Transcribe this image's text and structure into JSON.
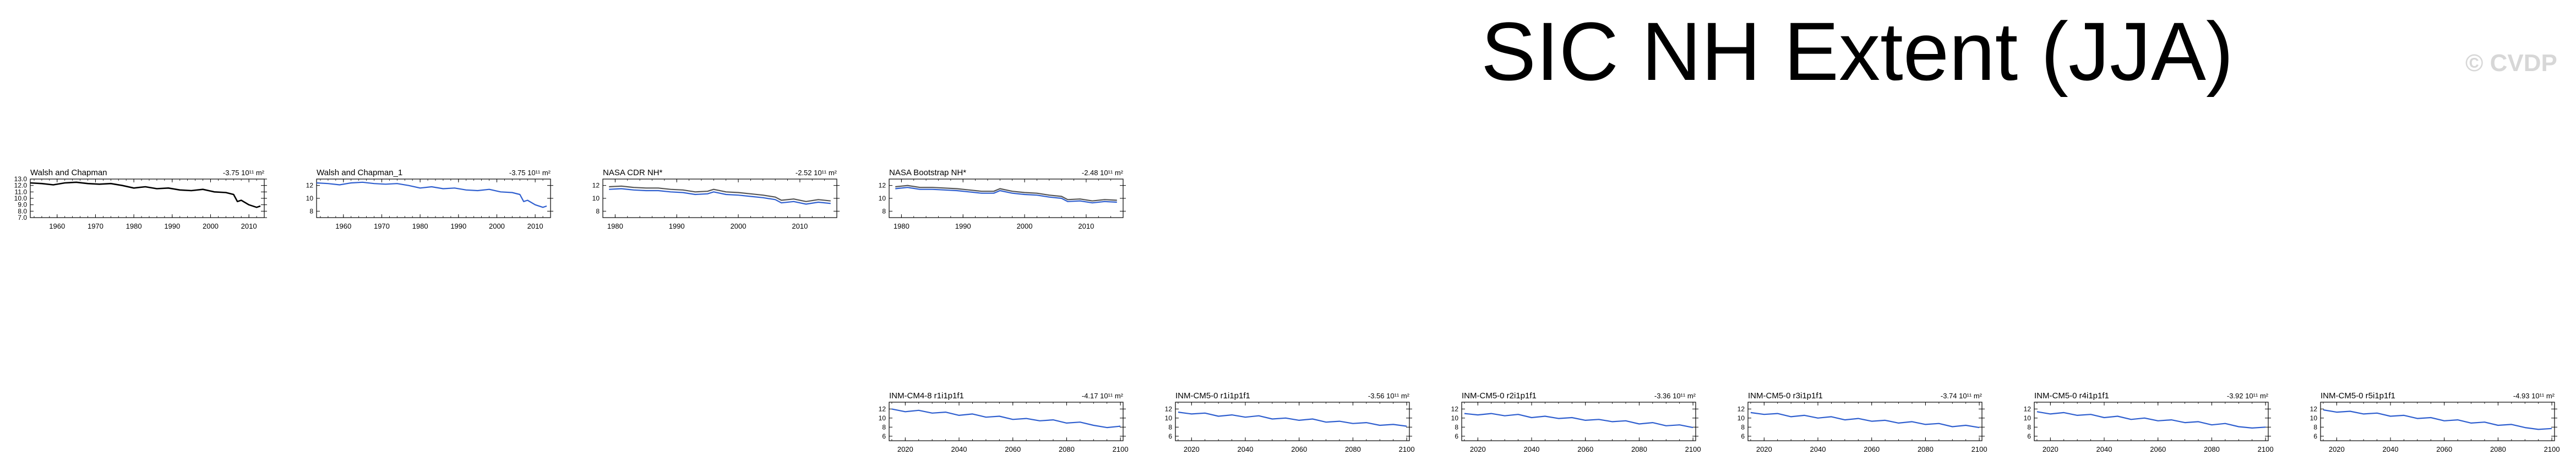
{
  "title": "SIC NH Extent (JJA)",
  "watermark": "© CVDP",
  "colors": {
    "observed": "#000000",
    "model": "#2f5fcf",
    "obs_secondary": "#555555"
  },
  "chart_data": [
    {
      "type": "line",
      "panel_name": "Walsh and Chapman",
      "trend": "-3.75 10¹¹ m²",
      "xlim": [
        1953,
        2014
      ],
      "ylim": [
        7,
        13
      ],
      "xticks": [
        1960,
        1970,
        1980,
        1990,
        2000,
        2010
      ],
      "yticks": [
        7.0,
        8.0,
        9.0,
        10.0,
        11.0,
        12.0,
        13.0
      ],
      "yticks_labels": [
        "7.0",
        "8.0",
        "9.0",
        "10.0",
        "11.0",
        "12.0",
        "13.0"
      ],
      "series": [
        {
          "color": "#000000",
          "x": [
            1953,
            1956,
            1959,
            1962,
            1965,
            1968,
            1971,
            1974,
            1977,
            1980,
            1983,
            1986,
            1989,
            1992,
            1995,
            1998,
            2001,
            2004,
            2006,
            2007,
            2008,
            2010,
            2012,
            2013
          ],
          "values": [
            12.4,
            12.3,
            12.1,
            12.4,
            12.5,
            12.3,
            12.2,
            12.3,
            12.0,
            11.6,
            11.8,
            11.5,
            11.6,
            11.3,
            11.2,
            11.4,
            11.0,
            10.9,
            10.6,
            9.5,
            9.7,
            9.0,
            8.6,
            8.8
          ]
        }
      ]
    },
    {
      "type": "line",
      "panel_name": "Walsh and Chapman_1",
      "trend": "-3.75 10¹¹ m²",
      "xlim": [
        1953,
        2014
      ],
      "ylim": [
        7,
        13
      ],
      "xticks": [
        1960,
        1970,
        1980,
        1990,
        2000,
        2010
      ],
      "yticks": [
        8,
        10,
        12
      ],
      "yticks_labels": [
        "8",
        "10",
        "12"
      ],
      "series": [
        {
          "color": "#2f5fcf",
          "x": [
            1953,
            1956,
            1959,
            1962,
            1965,
            1968,
            1971,
            1974,
            1977,
            1980,
            1983,
            1986,
            1989,
            1992,
            1995,
            1998,
            2001,
            2004,
            2006,
            2007,
            2008,
            2010,
            2012,
            2013
          ],
          "values": [
            12.4,
            12.3,
            12.1,
            12.4,
            12.5,
            12.3,
            12.2,
            12.3,
            12.0,
            11.6,
            11.8,
            11.5,
            11.6,
            11.3,
            11.2,
            11.4,
            11.0,
            10.9,
            10.6,
            9.5,
            9.7,
            9.0,
            8.6,
            8.8
          ]
        }
      ]
    },
    {
      "type": "line",
      "panel_name": "NASA CDR NH*",
      "trend": "-2.52 10¹¹ m²",
      "xlim": [
        1978,
        2016
      ],
      "ylim": [
        7,
        13
      ],
      "xticks": [
        1980,
        1990,
        2000,
        2010
      ],
      "yticks": [
        8,
        10,
        12
      ],
      "yticks_labels": [
        "8",
        "10",
        "12"
      ],
      "series": [
        {
          "color": "#555555",
          "x": [
            1979,
            1981,
            1983,
            1985,
            1987,
            1989,
            1991,
            1993,
            1995,
            1996,
            1998,
            2000,
            2002,
            2004,
            2006,
            2007,
            2009,
            2011,
            2013,
            2015
          ],
          "values": [
            11.8,
            11.9,
            11.7,
            11.6,
            11.6,
            11.4,
            11.3,
            11.0,
            11.1,
            11.4,
            11.0,
            10.9,
            10.7,
            10.5,
            10.2,
            9.7,
            9.9,
            9.5,
            9.8,
            9.6
          ]
        },
        {
          "color": "#2f5fcf",
          "x": [
            1979,
            1981,
            1983,
            1985,
            1987,
            1989,
            1991,
            1993,
            1995,
            1996,
            1998,
            2000,
            2002,
            2004,
            2006,
            2007,
            2009,
            2011,
            2013,
            2015
          ],
          "values": [
            11.4,
            11.5,
            11.3,
            11.2,
            11.2,
            11.0,
            10.9,
            10.6,
            10.7,
            11.0,
            10.6,
            10.5,
            10.3,
            10.1,
            9.8,
            9.3,
            9.5,
            9.1,
            9.4,
            9.2
          ]
        }
      ]
    },
    {
      "type": "line",
      "panel_name": "NASA Bootstrap NH*",
      "trend": "-2.48 10¹¹ m²",
      "xlim": [
        1978,
        2016
      ],
      "ylim": [
        7,
        13
      ],
      "xticks": [
        1980,
        1990,
        2000,
        2010
      ],
      "yticks": [
        8,
        10,
        12
      ],
      "yticks_labels": [
        "8",
        "10",
        "12"
      ],
      "series": [
        {
          "color": "#555555",
          "x": [
            1979,
            1981,
            1983,
            1985,
            1987,
            1989,
            1991,
            1993,
            1995,
            1996,
            1998,
            2000,
            2002,
            2004,
            2006,
            2007,
            2009,
            2011,
            2013,
            2015
          ],
          "values": [
            11.8,
            12.0,
            11.7,
            11.7,
            11.6,
            11.5,
            11.3,
            11.1,
            11.1,
            11.5,
            11.1,
            10.9,
            10.8,
            10.5,
            10.3,
            9.8,
            9.9,
            9.6,
            9.8,
            9.7
          ]
        },
        {
          "color": "#2f5fcf",
          "x": [
            1979,
            1981,
            1983,
            1985,
            1987,
            1989,
            1991,
            1993,
            1995,
            1996,
            1998,
            2000,
            2002,
            2004,
            2006,
            2007,
            2009,
            2011,
            2013,
            2015
          ],
          "values": [
            11.5,
            11.7,
            11.4,
            11.4,
            11.3,
            11.2,
            11.0,
            10.8,
            10.8,
            11.2,
            10.8,
            10.6,
            10.5,
            10.2,
            10.0,
            9.5,
            9.6,
            9.3,
            9.5,
            9.4
          ]
        }
      ]
    },
    {
      "type": "line",
      "panel_name": "INM-CM4-8 r1i1p1f1",
      "trend": "-4.17 10¹¹ m²",
      "xlim": [
        2014,
        2101
      ],
      "ylim": [
        5,
        13.5
      ],
      "xticks": [
        2020,
        2040,
        2060,
        2080,
        2100
      ],
      "yticks": [
        6,
        8,
        10,
        12
      ],
      "yticks_labels": [
        "6",
        "8",
        "10",
        "12"
      ],
      "series": [
        {
          "color": "#2f5fcf",
          "x": [
            2015,
            2020,
            2025,
            2030,
            2035,
            2040,
            2045,
            2050,
            2055,
            2060,
            2065,
            2070,
            2075,
            2080,
            2085,
            2090,
            2095,
            2100
          ],
          "values": [
            12.0,
            11.4,
            11.7,
            11.1,
            11.3,
            10.6,
            10.9,
            10.2,
            10.4,
            9.7,
            9.9,
            9.4,
            9.6,
            8.9,
            9.1,
            8.4,
            7.9,
            8.2
          ]
        }
      ]
    },
    {
      "type": "line",
      "panel_name": "INM-CM5-0 r1i1p1f1",
      "trend": "-3.56 10¹¹ m²",
      "xlim": [
        2014,
        2101
      ],
      "ylim": [
        5,
        13.5
      ],
      "xticks": [
        2020,
        2040,
        2060,
        2080,
        2100
      ],
      "yticks": [
        6,
        8,
        10,
        12
      ],
      "yticks_labels": [
        "6",
        "8",
        "10",
        "12"
      ],
      "series": [
        {
          "color": "#2f5fcf",
          "x": [
            2015,
            2020,
            2025,
            2030,
            2035,
            2040,
            2045,
            2050,
            2055,
            2060,
            2065,
            2070,
            2075,
            2080,
            2085,
            2090,
            2095,
            2100
          ],
          "values": [
            11.3,
            10.9,
            11.1,
            10.4,
            10.7,
            10.2,
            10.5,
            9.8,
            10.0,
            9.5,
            9.8,
            9.1,
            9.3,
            8.8,
            9.0,
            8.4,
            8.6,
            8.2
          ]
        }
      ]
    },
    {
      "type": "line",
      "panel_name": "INM-CM5-0 r2i1p1f1",
      "trend": "-3.36 10¹¹ m²",
      "xlim": [
        2014,
        2101
      ],
      "ylim": [
        5,
        13.5
      ],
      "xticks": [
        2020,
        2040,
        2060,
        2080,
        2100
      ],
      "yticks": [
        6,
        8,
        10,
        12
      ],
      "yticks_labels": [
        "6",
        "8",
        "10",
        "12"
      ],
      "series": [
        {
          "color": "#2f5fcf",
          "x": [
            2015,
            2020,
            2025,
            2030,
            2035,
            2040,
            2045,
            2050,
            2055,
            2060,
            2065,
            2070,
            2075,
            2080,
            2085,
            2090,
            2095,
            2100
          ],
          "values": [
            11.0,
            10.7,
            11.0,
            10.5,
            10.8,
            10.1,
            10.4,
            9.9,
            10.1,
            9.5,
            9.7,
            9.2,
            9.4,
            8.7,
            9.0,
            8.3,
            8.5,
            7.9
          ]
        }
      ]
    },
    {
      "type": "line",
      "panel_name": "INM-CM5-0 r3i1p1f1",
      "trend": "-3.74 10¹¹ m²",
      "xlim": [
        2014,
        2101
      ],
      "ylim": [
        5,
        13.5
      ],
      "xticks": [
        2020,
        2040,
        2060,
        2080,
        2100
      ],
      "yticks": [
        6,
        8,
        10,
        12
      ],
      "yticks_labels": [
        "6",
        "8",
        "10",
        "12"
      ],
      "series": [
        {
          "color": "#2f5fcf",
          "x": [
            2015,
            2020,
            2025,
            2030,
            2035,
            2040,
            2045,
            2050,
            2055,
            2060,
            2065,
            2070,
            2075,
            2080,
            2085,
            2090,
            2095,
            2100
          ],
          "values": [
            11.2,
            10.8,
            11.0,
            10.3,
            10.6,
            10.0,
            10.3,
            9.6,
            9.9,
            9.3,
            9.5,
            8.9,
            9.2,
            8.6,
            8.8,
            8.1,
            8.4,
            7.9
          ]
        }
      ]
    },
    {
      "type": "line",
      "panel_name": "INM-CM5-0 r4i1p1f1",
      "trend": "-3.92 10¹¹ m²",
      "xlim": [
        2014,
        2101
      ],
      "ylim": [
        5,
        13.5
      ],
      "xticks": [
        2020,
        2040,
        2060,
        2080,
        2100
      ],
      "yticks": [
        6,
        8,
        10,
        12
      ],
      "yticks_labels": [
        "6",
        "8",
        "10",
        "12"
      ],
      "series": [
        {
          "color": "#2f5fcf",
          "x": [
            2015,
            2020,
            2025,
            2030,
            2035,
            2040,
            2045,
            2050,
            2055,
            2060,
            2065,
            2070,
            2075,
            2080,
            2085,
            2090,
            2095,
            2100
          ],
          "values": [
            11.4,
            10.9,
            11.2,
            10.6,
            10.8,
            10.1,
            10.4,
            9.7,
            10.0,
            9.4,
            9.6,
            9.0,
            9.2,
            8.5,
            8.8,
            8.1,
            7.8,
            8.0
          ]
        }
      ]
    },
    {
      "type": "line",
      "panel_name": "INM-CM5-0 r5i1p1f1",
      "trend": "-4.93 10¹¹ m²",
      "xlim": [
        2014,
        2101
      ],
      "ylim": [
        5,
        13.5
      ],
      "xticks": [
        2020,
        2040,
        2060,
        2080,
        2100
      ],
      "yticks": [
        6,
        8,
        10,
        12
      ],
      "yticks_labels": [
        "6",
        "8",
        "10",
        "12"
      ],
      "series": [
        {
          "color": "#2f5fcf",
          "x": [
            2015,
            2020,
            2025,
            2030,
            2035,
            2040,
            2045,
            2050,
            2055,
            2060,
            2065,
            2070,
            2075,
            2080,
            2085,
            2090,
            2095,
            2100
          ],
          "values": [
            11.8,
            11.3,
            11.5,
            10.9,
            11.1,
            10.4,
            10.6,
            9.9,
            10.1,
            9.4,
            9.6,
            8.9,
            9.1,
            8.4,
            8.6,
            7.9,
            7.5,
            7.7
          ]
        }
      ]
    }
  ]
}
